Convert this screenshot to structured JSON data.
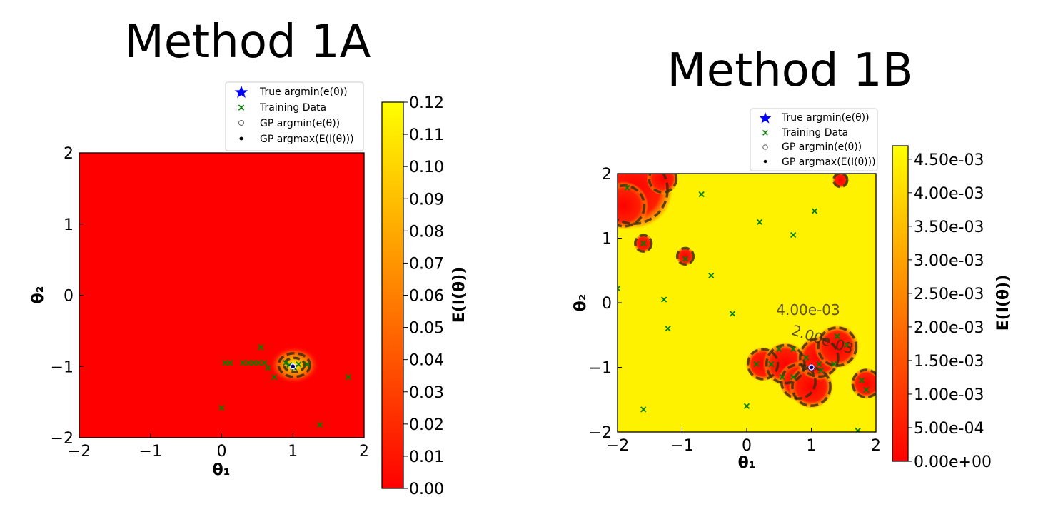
{
  "chart_data": [
    {
      "type": "heatmap",
      "title": "Method 1A",
      "xlabel": "θ₁",
      "ylabel": "θ₂",
      "xlim": [
        -2,
        2
      ],
      "ylim": [
        -2,
        2
      ],
      "x_ticks": [
        "−2",
        "−1",
        "0",
        "1",
        "2"
      ],
      "y_ticks": [
        "−2",
        "−1",
        "0",
        "1",
        "2"
      ],
      "colorbar": {
        "label": "E(I(θ))",
        "min": 0.0,
        "max": 0.12,
        "ticks": [
          "0.00",
          "0.01",
          "0.02",
          "0.03",
          "0.04",
          "0.05",
          "0.06",
          "0.07",
          "0.08",
          "0.09",
          "0.10",
          "0.11",
          "0.12"
        ],
        "colormap": "autumn",
        "low_color": "#ff0000",
        "high_color": "#ffff00"
      },
      "background_value": 0.0,
      "legend": {
        "placement": "above-right",
        "entries": [
          "True argmin(e(θ))",
          "Training Data",
          "GP argmin(e(θ))",
          "GP argmax(E(I(θ)))"
        ]
      },
      "true_argmin": [
        1.0,
        -1.0
      ],
      "gp_argmin": [
        1.0,
        -1.0
      ],
      "gp_argmax_ei": [
        1.0,
        -1.0
      ],
      "training_data": [
        [
          0.55,
          -0.73
        ],
        [
          0.05,
          -0.95
        ],
        [
          0.12,
          -0.95
        ],
        [
          0.3,
          -0.95
        ],
        [
          0.38,
          -0.95
        ],
        [
          0.45,
          -0.95
        ],
        [
          0.52,
          -0.95
        ],
        [
          0.6,
          -0.95
        ],
        [
          0.65,
          -1.02
        ],
        [
          0.74,
          -1.15
        ],
        [
          0.9,
          -0.95
        ],
        [
          0.95,
          -0.98
        ],
        [
          1.02,
          -1.02
        ],
        [
          1.08,
          -0.97
        ],
        [
          1.2,
          -0.97
        ],
        [
          0.0,
          -1.58
        ],
        [
          1.38,
          -1.82
        ],
        [
          1.78,
          -1.15
        ]
      ],
      "hotspots": [
        [
          1.02,
          -0.98,
          0.11
        ]
      ]
    },
    {
      "type": "heatmap",
      "title": "Method 1B",
      "xlabel": "θ₁",
      "ylabel": "θ₂",
      "xlim": [
        -2,
        2
      ],
      "ylim": [
        -2,
        2
      ],
      "x_ticks": [
        "−2",
        "−1",
        "0",
        "1",
        "2"
      ],
      "y_ticks": [
        "−2",
        "−1",
        "0",
        "1",
        "2"
      ],
      "colorbar": {
        "label": "E(I(θ))",
        "min": 0.0,
        "max": 0.0047,
        "ticks": [
          "0.00e+00",
          "5.00e-04",
          "1.00e-03",
          "1.50e-03",
          "2.00e-03",
          "2.50e-03",
          "3.00e-03",
          "3.50e-03",
          "4.00e-03",
          "4.50e-03"
        ],
        "colormap": "autumn",
        "low_color": "#ff0000",
        "high_color": "#ffff00"
      },
      "background_value": 0.0047,
      "contour_labels": [
        "4.00e-03",
        "2.00e-03"
      ],
      "legend": {
        "placement": "above-right",
        "entries": [
          "True argmin(e(θ))",
          "Training Data",
          "GP argmin(e(θ))",
          "GP argmax(E(I(θ)))"
        ]
      },
      "true_argmin": [
        1.0,
        -1.0
      ],
      "gp_argmin": [
        1.0,
        -1.0
      ],
      "gp_argmax_ei": [
        1.0,
        -1.0
      ],
      "training_data": [
        [
          -1.85,
          1.78
        ],
        [
          -1.6,
          0.92
        ],
        [
          -0.7,
          1.68
        ],
        [
          0.2,
          1.25
        ],
        [
          0.72,
          1.05
        ],
        [
          1.05,
          1.42
        ],
        [
          -0.95,
          0.68
        ],
        [
          -0.55,
          0.42
        ],
        [
          -2.0,
          0.22
        ],
        [
          -1.28,
          0.05
        ],
        [
          -1.22,
          -0.4
        ],
        [
          -0.22,
          -0.17
        ],
        [
          -1.6,
          -1.65
        ],
        [
          0.0,
          -1.6
        ],
        [
          0.15,
          -0.95
        ],
        [
          0.38,
          -0.95
        ],
        [
          0.5,
          -0.72
        ],
        [
          0.72,
          -0.72
        ],
        [
          0.55,
          -1.15
        ],
        [
          0.72,
          -1.15
        ],
        [
          0.92,
          -0.85
        ],
        [
          1.12,
          -0.95
        ],
        [
          1.15,
          -1.05
        ],
        [
          1.35,
          -0.95
        ],
        [
          1.4,
          -0.52
        ],
        [
          1.55,
          -0.65
        ],
        [
          1.72,
          -1.98
        ],
        [
          1.78,
          -1.2
        ],
        [
          1.85,
          -1.35
        ]
      ],
      "low_regions": [
        [
          -1.75,
          1.75,
          0.5
        ],
        [
          -1.9,
          1.5,
          0.3
        ],
        [
          -1.3,
          1.92,
          0.2
        ],
        [
          -1.6,
          0.92,
          0.12
        ],
        [
          -0.95,
          0.72,
          0.12
        ],
        [
          1.45,
          1.9,
          0.1
        ],
        [
          0.25,
          -0.95,
          0.22
        ],
        [
          0.6,
          -0.95,
          0.28
        ],
        [
          0.8,
          -1.22,
          0.25
        ],
        [
          1.0,
          -1.3,
          0.28
        ],
        [
          1.12,
          -0.85,
          0.28
        ],
        [
          1.4,
          -0.68,
          0.28
        ],
        [
          1.85,
          -1.25,
          0.2
        ]
      ]
    }
  ]
}
